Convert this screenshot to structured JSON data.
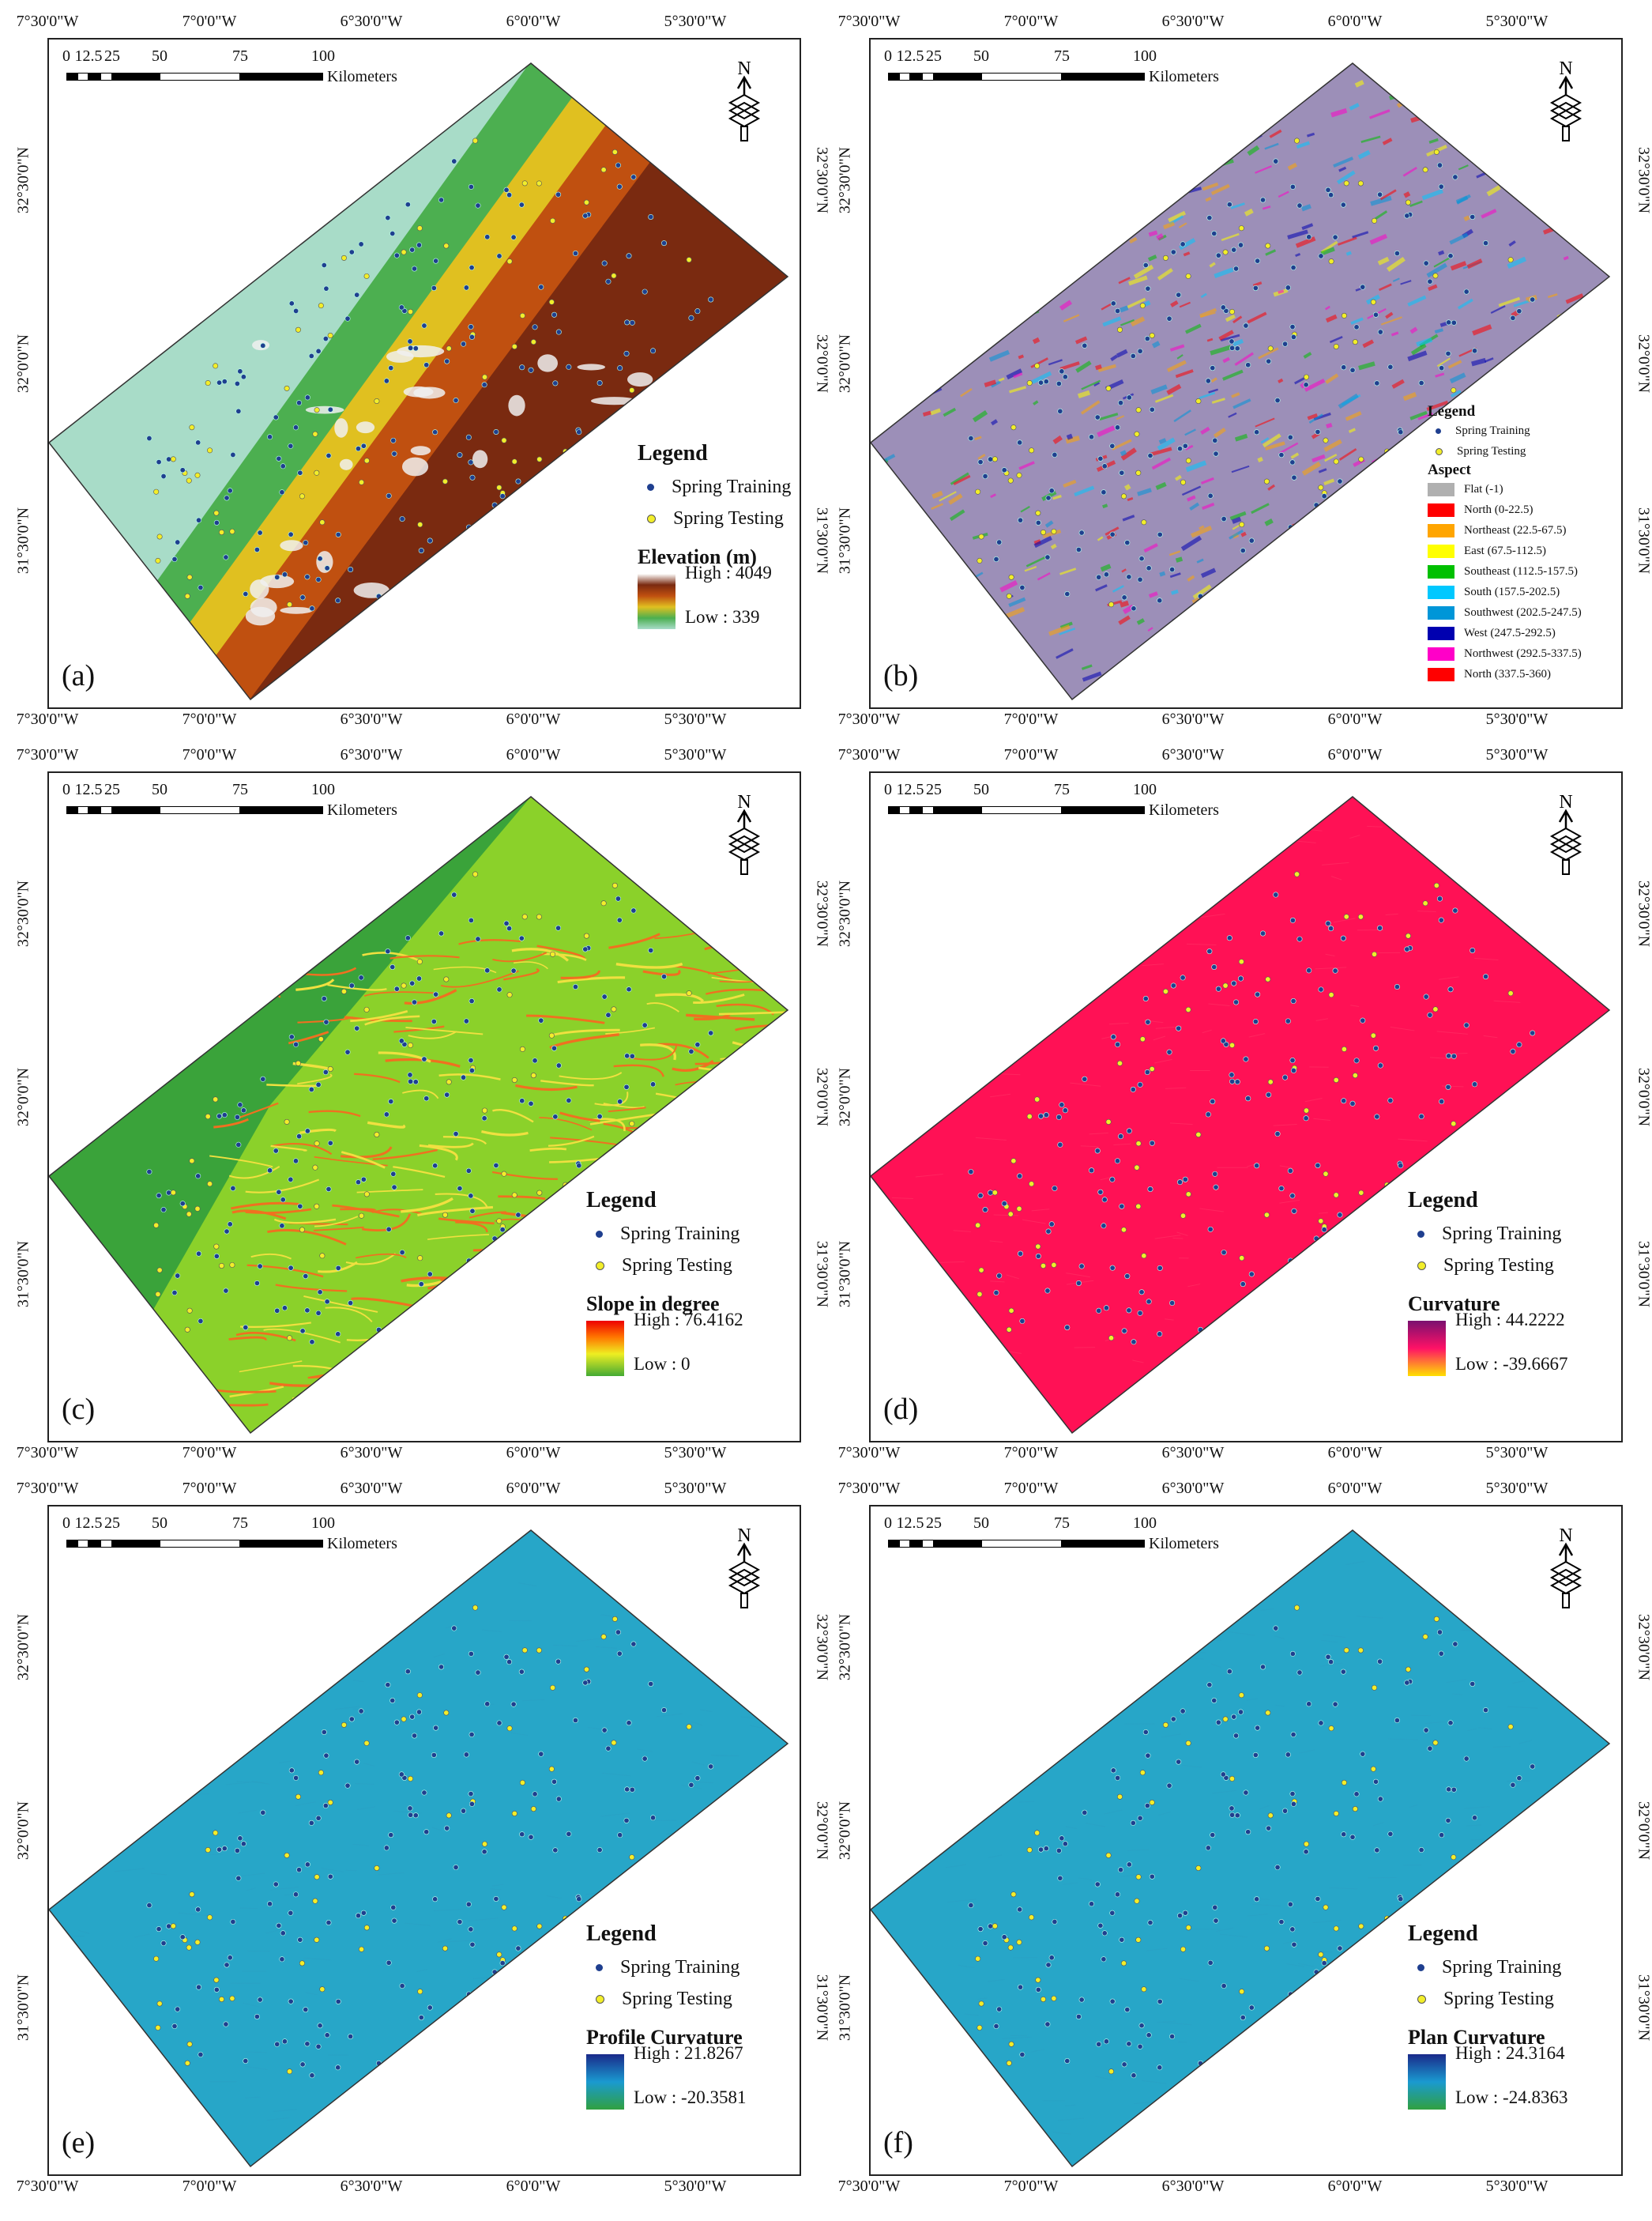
{
  "lon_labels": [
    "7°30'0\"W",
    "7°0'0\"W",
    "6°30'0\"W",
    "6°0'0\"W",
    "5°30'0\"W"
  ],
  "lat_labels": [
    "32°30'0\"N",
    "32°0'0\"N",
    "31°30'0\"N"
  ],
  "scale_bar": {
    "ticks": [
      "0",
      "12.5",
      "25",
      "50",
      "75",
      "100"
    ],
    "unit": "Kilometers"
  },
  "north_arrow": {
    "letter": "N",
    "icon": "north-arrow-icon"
  },
  "legend_common": {
    "title": "Legend",
    "training": "Spring Training",
    "testing": "Spring Testing"
  },
  "colors": {
    "training": "#1f3f8f",
    "testing": "#f2ee2a"
  },
  "panels": [
    {
      "id": "a",
      "label": "(a)",
      "layer": "Elevation (m)",
      "high": "High : 4049",
      "low": "Low : 339"
    },
    {
      "id": "b",
      "label": "(b)",
      "layer": "Aspect",
      "classes": [
        "Flat (-1)",
        "North (0-22.5)",
        "Northeast (22.5-67.5)",
        "East (67.5-112.5)",
        "Southeast (112.5-157.5)",
        "South (157.5-202.5)",
        "Southwest (202.5-247.5)",
        "West (247.5-292.5)",
        "Northwest (292.5-337.5)",
        "North (337.5-360)"
      ],
      "class_colors": [
        "#b0b0b0",
        "#ff0000",
        "#ffa500",
        "#ffff00",
        "#00c000",
        "#00c8ff",
        "#0096d8",
        "#0000b0",
        "#ff00c8",
        "#ff0000"
      ]
    },
    {
      "id": "c",
      "label": "(c)",
      "layer": "Slope in degree",
      "high": "High : 76.4162",
      "low": "Low : 0"
    },
    {
      "id": "d",
      "label": "(d)",
      "layer": "Curvature",
      "high": "High : 44.2222",
      "low": "Low : -39.6667"
    },
    {
      "id": "e",
      "label": "(e)",
      "layer": "Profile Curvature",
      "high": "High : 21.8267",
      "low": "Low : -20.3581"
    },
    {
      "id": "f",
      "label": "(f)",
      "layer": "Plan Curvature",
      "high": "High : 24.3164",
      "low": "Low : -24.8363"
    }
  ]
}
